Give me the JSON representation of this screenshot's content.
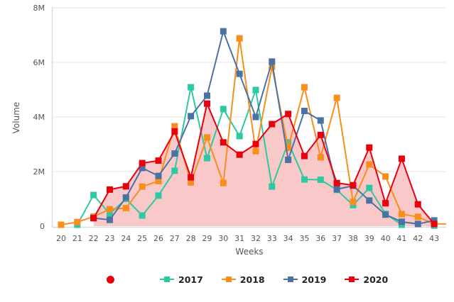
{
  "chart_data": {
    "type": "line",
    "title": "",
    "xlabel": "Weeks",
    "ylabel": "Volume",
    "x": [
      20,
      21,
      22,
      23,
      24,
      25,
      26,
      27,
      28,
      29,
      30,
      31,
      32,
      33,
      34,
      35,
      36,
      37,
      38,
      39,
      40,
      41,
      42,
      43
    ],
    "ylim": [
      0,
      8000000
    ],
    "yticks": [
      0,
      2000000,
      4000000,
      6000000,
      8000000
    ],
    "ytick_labels": [
      "0",
      "2M",
      "4M",
      "6M",
      "8M"
    ],
    "grid": true,
    "legend_position": "bottom",
    "area_series": {
      "name": "",
      "color": "#e8000d",
      "fill": "#f9c8c8",
      "source": "2020"
    },
    "series": [
      {
        "name": "2017",
        "color": "#2ec8a2",
        "values": [
          null,
          50000,
          1140000,
          450000,
          1000000,
          390000,
          1120000,
          2030000,
          5090000,
          2490000,
          4290000,
          3300000,
          4990000,
          1450000,
          3070000,
          1710000,
          1700000,
          1330000,
          770000,
          1400000,
          450000,
          50000,
          null,
          20000
        ]
      },
      {
        "name": "2018",
        "color": "#f98e1d",
        "values": [
          50000,
          150000,
          350000,
          620000,
          660000,
          1450000,
          1650000,
          3660000,
          1600000,
          3250000,
          1580000,
          6880000,
          2750000,
          5840000,
          2870000,
          5090000,
          2520000,
          4700000,
          890000,
          2260000,
          1820000,
          440000,
          340000,
          80000
        ],
        "tail_value": 80000
      },
      {
        "name": "2019",
        "color": "#4a73a3",
        "values": [
          null,
          null,
          300000,
          230000,
          1050000,
          2130000,
          1840000,
          2660000,
          4030000,
          4780000,
          7140000,
          5580000,
          4000000,
          6030000,
          2430000,
          4220000,
          3870000,
          1350000,
          1480000,
          940000,
          420000,
          160000,
          80000,
          210000
        ]
      },
      {
        "name": "2020",
        "color": "#e8000d",
        "values": [
          null,
          null,
          290000,
          1340000,
          1460000,
          2310000,
          2400000,
          3470000,
          1790000,
          4490000,
          3070000,
          2620000,
          3010000,
          3740000,
          4110000,
          2570000,
          3340000,
          1580000,
          1500000,
          2880000,
          840000,
          2470000,
          800000,
          80000
        ]
      }
    ]
  },
  "legend": {
    "items": [
      {
        "label": "",
        "color": "#e8000d",
        "shape": "circle"
      },
      {
        "label": "2017",
        "color": "#2ec8a2",
        "shape": "line-square"
      },
      {
        "label": "2018",
        "color": "#f98e1d",
        "shape": "line-square"
      },
      {
        "label": "2019",
        "color": "#4a73a3",
        "shape": "line-square"
      },
      {
        "label": "2020",
        "color": "#e8000d",
        "shape": "line-square"
      }
    ]
  }
}
